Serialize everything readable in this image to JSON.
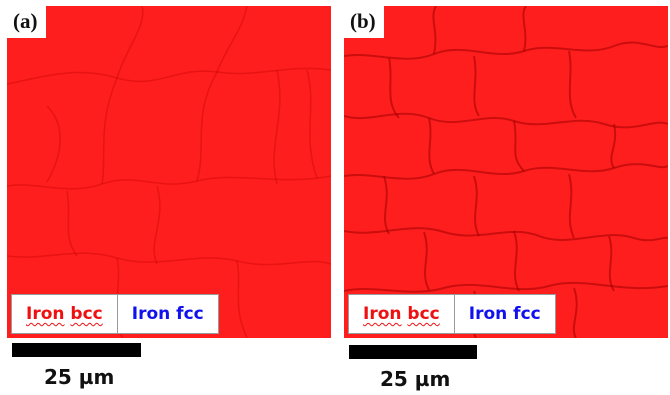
{
  "figure": {
    "panels": [
      {
        "label": "(a)",
        "legend": {
          "bcc": {
            "word1": "Iron",
            "word2": "bcc",
            "color": "#ee1111"
          },
          "fcc": {
            "word1": "Iron",
            "word2": "fcc",
            "color": "#1111ee"
          }
        },
        "scale_bar_label": "25 µm"
      },
      {
        "label": "(b)",
        "legend": {
          "bcc": {
            "word1": "Iron",
            "word2": "bcc",
            "color": "#ee1111"
          },
          "fcc": {
            "word1": "Iron",
            "word2": "fcc",
            "color": "#1111ee"
          }
        },
        "scale_bar_label": "25 µm"
      }
    ],
    "colors": {
      "phase_map_fill": "#ff1e1e",
      "grain_boundary": "#b00000",
      "scale_bar": "#000000"
    }
  }
}
